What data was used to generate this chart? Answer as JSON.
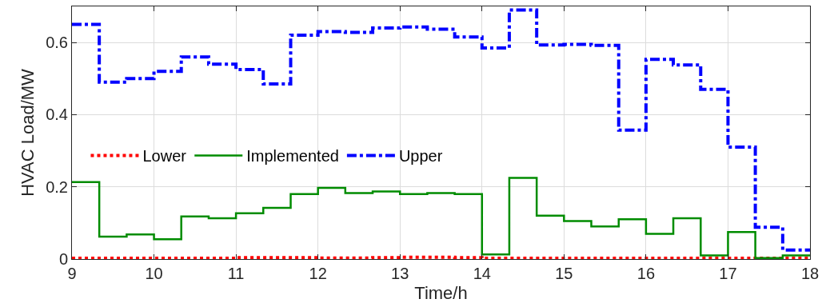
{
  "chart_data": {
    "type": "step",
    "xlabel": "Time/h",
    "ylabel": "HVAC Load/MW",
    "x": [
      9,
      9.333,
      9.667,
      10,
      10.333,
      10.667,
      11,
      11.333,
      11.667,
      12,
      12.333,
      12.667,
      13,
      13.333,
      13.667,
      14,
      14.333,
      14.667,
      15,
      15.333,
      15.667,
      16,
      16.333,
      16.667,
      17,
      17.333,
      17.667,
      18
    ],
    "series": [
      {
        "name": "Lower",
        "color": "#ff0000",
        "line_style": "dotted",
        "values": [
          0.002,
          0.002,
          0.002,
          0.002,
          0.002,
          0.002,
          0.004,
          0.004,
          0.004,
          0.003,
          0.003,
          0.004,
          0.005,
          0.005,
          0.004,
          0.002,
          0.002,
          0.002,
          0.002,
          0.002,
          0.002,
          0.002,
          0.002,
          0.002,
          0.002,
          0.002,
          0.002,
          0.002
        ]
      },
      {
        "name": "Implemented",
        "color": "#008c00",
        "line_style": "solid",
        "values": [
          0.213,
          0.062,
          0.068,
          0.055,
          0.118,
          0.113,
          0.127,
          0.142,
          0.18,
          0.197,
          0.183,
          0.187,
          0.18,
          0.183,
          0.18,
          0.013,
          0.225,
          0.12,
          0.105,
          0.09,
          0.11,
          0.07,
          0.113,
          0.01,
          0.075,
          0.003,
          0.01,
          0.01
        ]
      },
      {
        "name": "Upper",
        "color": "#0000ff",
        "line_style": "dashdot",
        "values": [
          0.65,
          0.49,
          0.5,
          0.52,
          0.56,
          0.54,
          0.525,
          0.485,
          0.62,
          0.63,
          0.628,
          0.64,
          0.643,
          0.637,
          0.615,
          0.585,
          0.69,
          0.593,
          0.595,
          0.592,
          0.357,
          0.553,
          0.538,
          0.47,
          0.31,
          0.088,
          0.025,
          0.025
        ]
      }
    ],
    "xlim": [
      9,
      18
    ],
    "xticks": [
      9,
      10,
      11,
      12,
      13,
      14,
      15,
      16,
      17,
      18
    ],
    "ylim": [
      0,
      0.7
    ],
    "yticks": [
      0,
      0.2,
      0.4,
      0.6
    ],
    "grid": true,
    "legend": "left"
  }
}
